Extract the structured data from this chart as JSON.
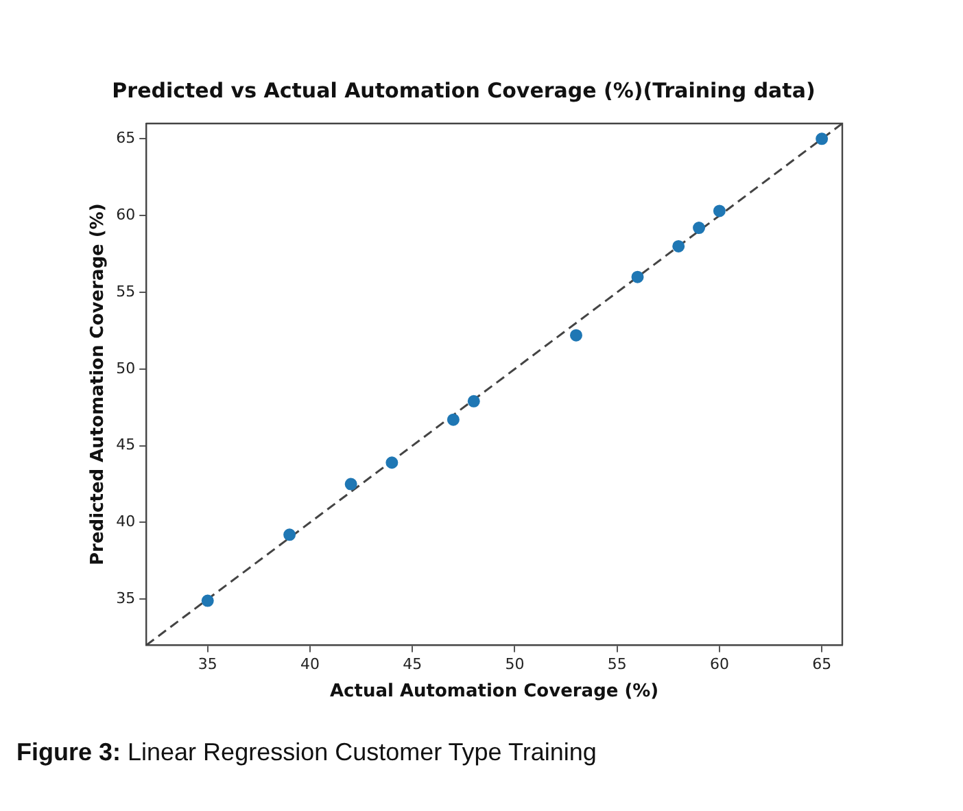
{
  "chart_data": {
    "type": "scatter",
    "title": "Predicted vs Actual Automation Coverage (%)(Training data)",
    "xlabel": "Actual Automation Coverage (%)",
    "ylabel": "Predicted Automation Coverage (%)",
    "annotations": [
      "Figure 3: Linear Regression Customer Type Training"
    ],
    "series": [
      {
        "color": "#1f77b4",
        "marker": "circle",
        "x": [
          35,
          39,
          42,
          44,
          47,
          48,
          53,
          56,
          58,
          59,
          60,
          65
        ],
        "values": [
          34.9,
          39.2,
          42.5,
          43.9,
          46.7,
          47.9,
          52.2,
          56.0,
          58.0,
          59.2,
          60.3,
          65.0
        ]
      },
      {
        "type": "line",
        "color": "#444444",
        "line_style": "dashed",
        "marker": "none",
        "x": [
          32,
          66
        ],
        "values": [
          32,
          66
        ]
      }
    ],
    "xlim": [
      32,
      66
    ],
    "ylim": [
      32,
      66
    ],
    "xticks": [
      35,
      40,
      45,
      50,
      55,
      60,
      65
    ],
    "yticks": [
      35,
      40,
      45,
      50,
      55,
      60,
      65
    ],
    "grid": false,
    "legend": false
  }
}
